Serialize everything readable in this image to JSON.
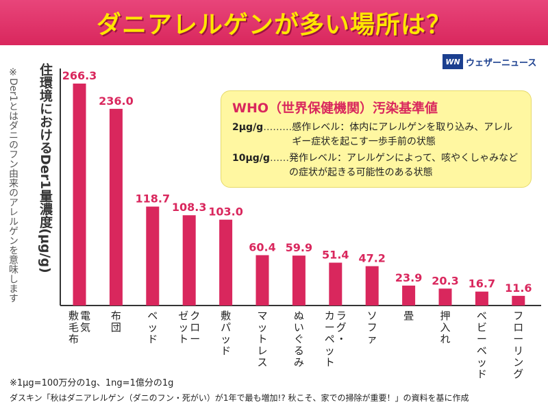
{
  "header": {
    "title": "ダニアレルゲンが多い場所は？"
  },
  "logo": {
    "mark": "WN",
    "text": "ウェザーニュース"
  },
  "side_note": "※Der1とはダニのフン由来のアレルゲンを意味します",
  "who": {
    "title": "WHO（世界保健機関）汚染基準値",
    "rows": [
      {
        "level": "2µg/g",
        "dots": "………",
        "desc": "感作レベル：体内にアレルゲンを取り込み、アレルギー症状を起こす一歩手前の状態"
      },
      {
        "level": "10µg/g",
        "dots": "……",
        "desc": "発作レベル：アレルゲンによって、咳やくしゃみなどの症状が起きる可能性のある状態"
      }
    ]
  },
  "footnotes": {
    "unit": "※1µg=100万分の1g、1ng=1億分の1g",
    "source": "ダスキン「秋はダニアレルゲン（ダニのフン・死がい）が1年で最も増加!? 秋こそ、家での掃除が重要！」の資料を基に作成"
  },
  "chart_data": {
    "type": "bar",
    "title": "ダニアレルゲンが多い場所は？",
    "ylabel": "住環境におけるDer1量濃度(µg/g)",
    "categories": [
      "電気敷毛布",
      "布団",
      "ベッド",
      "クローゼット",
      "敷パッド",
      "マットレス",
      "ぬいぐるみ",
      "ラグ・カーペット",
      "ソファ",
      "畳",
      "押入れ",
      "ベビーベッド",
      "フローリング"
    ],
    "category_lines": [
      [
        "電気",
        "敷毛布"
      ],
      [
        "布団"
      ],
      [
        "ベッド"
      ],
      [
        "クロー",
        "ゼット"
      ],
      [
        "敷パッド"
      ],
      [
        "マットレス"
      ],
      [
        "ぬいぐるみ"
      ],
      [
        "ラグ・",
        "カーペット"
      ],
      [
        "ソファ"
      ],
      [
        "畳"
      ],
      [
        "押入れ"
      ],
      [
        "ベビーベッド"
      ],
      [
        "フローリング"
      ]
    ],
    "values": [
      266.3,
      236.0,
      118.7,
      108.3,
      103.0,
      60.4,
      59.9,
      51.4,
      47.2,
      23.9,
      20.3,
      16.7,
      11.6
    ],
    "value_labels": [
      "266.3",
      "236.0",
      "118.7",
      "108.3",
      "103.0",
      "60.4",
      "59.9",
      "51.4",
      "47.2",
      "23.9",
      "20.3",
      "16.7",
      "11.6"
    ],
    "ylim": [
      0,
      266.3
    ],
    "grid": false,
    "bar_color": "#d9275d",
    "label_color": "#d9275d"
  }
}
